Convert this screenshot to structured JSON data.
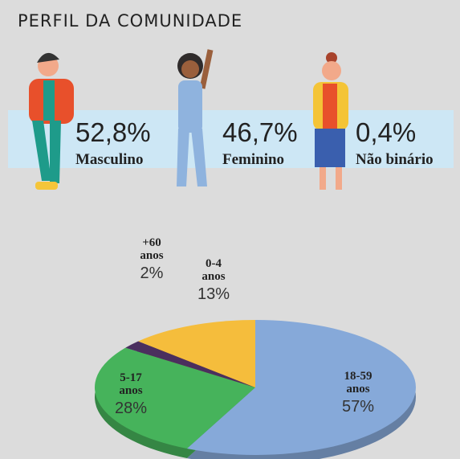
{
  "title": "PERFIL DA COMUNIDADE",
  "gender": [
    {
      "value": "52,8%",
      "label": "Masculino"
    },
    {
      "value": "46,7%",
      "label": "Feminino"
    },
    {
      "value": "0,4%",
      "label": "Não binário"
    }
  ],
  "chart_data": {
    "type": "pie",
    "categories": [
      [
        "18-59",
        "anos"
      ],
      [
        "5-17",
        "anos"
      ],
      [
        "+60",
        "anos"
      ],
      [
        "0-4",
        "anos"
      ]
    ],
    "values": [
      57,
      28,
      2,
      13
    ],
    "value_labels": [
      "57%",
      "28%",
      "2%",
      "13%"
    ],
    "colors": [
      "#86a9d9",
      "#46b35b",
      "#4b2f5e",
      "#f5bd3c"
    ]
  }
}
